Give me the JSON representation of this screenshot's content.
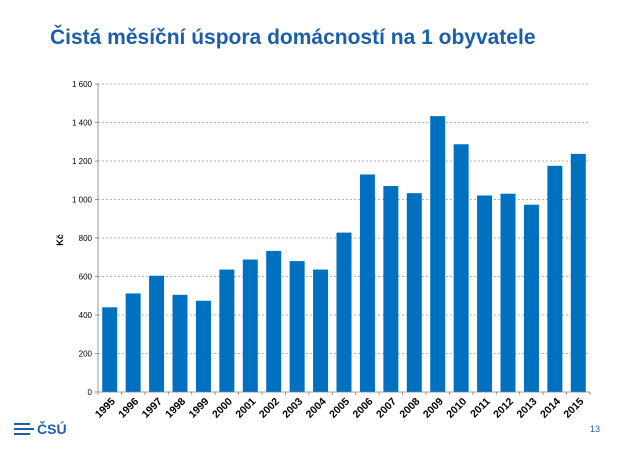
{
  "page": {
    "title": "Čistá měsíční úspora domácností na 1 obyvatele",
    "logo_text": "ČSÚ",
    "page_number": "13"
  },
  "colors": {
    "title": "#1a5fa8",
    "bar": "#0070c0",
    "grid": "#9a9a9a",
    "axis": "#7f7f7f",
    "text": "#000000"
  },
  "chart_data": {
    "type": "bar",
    "title": "",
    "xlabel": "",
    "ylabel": "Kč",
    "ylim": [
      0,
      1600
    ],
    "yticks": [
      0,
      200,
      400,
      600,
      800,
      1000,
      1200,
      1400,
      1600
    ],
    "ytick_labels": [
      "0",
      "200",
      "400",
      "600",
      "800",
      "1 000",
      "1 200",
      "1 400",
      "1 600"
    ],
    "grid": true,
    "legend": "none",
    "categories": [
      "1995",
      "1996",
      "1997",
      "1998",
      "1999",
      "2000",
      "2001",
      "2002",
      "2003",
      "2004",
      "2005",
      "2006",
      "2007",
      "2008",
      "2009",
      "2010",
      "2011",
      "2012",
      "2013",
      "2014",
      "2015"
    ],
    "values": [
      440,
      512,
      604,
      505,
      474,
      636,
      688,
      733,
      680,
      636,
      828,
      1130,
      1070,
      1033,
      1433,
      1287,
      1021,
      1030,
      973,
      1175,
      1237
    ]
  }
}
